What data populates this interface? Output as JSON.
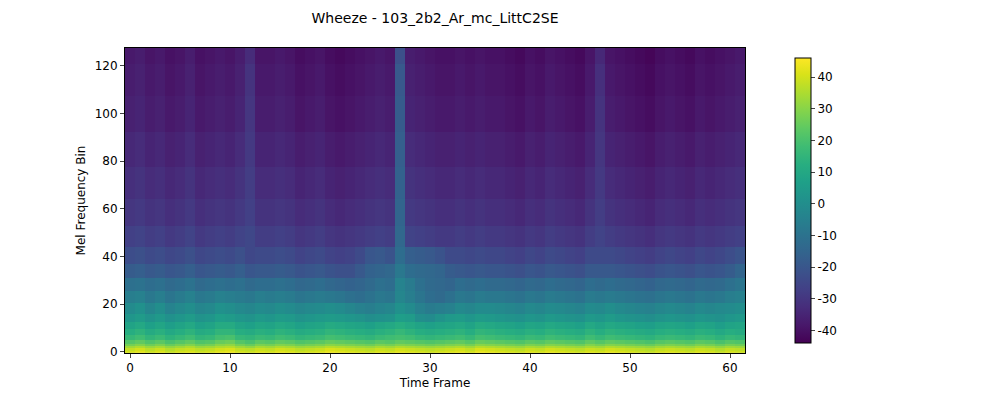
{
  "chart_data": {
    "type": "heatmap",
    "title": "Wheeze - 103_2b2_Ar_mc_LittC2SE",
    "x_label": "Time Frame",
    "y_label": "Mel Frequency Bin",
    "color": "Viridis",
    "xlim": [
      -0.5,
      61.5
    ],
    "ylim": [
      -0.5,
      127.5
    ],
    "xticks": [
      0,
      10,
      20,
      30,
      40,
      50,
      60
    ],
    "yticks": [
      0,
      20,
      40,
      60,
      80,
      100,
      120
    ],
    "colorbar": {
      "range": [
        -44,
        46
      ],
      "ticks": [
        -40,
        -30,
        -20,
        -10,
        0,
        10,
        20,
        30,
        40
      ]
    },
    "x": [
      0,
      1,
      2,
      3,
      4,
      5,
      6,
      7,
      8,
      9,
      10,
      11,
      12,
      13,
      14,
      15,
      16,
      17,
      18,
      19,
      20,
      21,
      22,
      23,
      24,
      25,
      26,
      27,
      28,
      29,
      30,
      31,
      32,
      33,
      34,
      35,
      36,
      37,
      38,
      39,
      40,
      41,
      42,
      43,
      44,
      45,
      46,
      47,
      48,
      49,
      50,
      51,
      52,
      53,
      54,
      55,
      56,
      57,
      58,
      59,
      60,
      61
    ],
    "y": [
      0,
      1,
      2,
      3,
      4,
      6,
      8,
      11,
      14,
      18,
      23,
      28,
      34,
      40,
      48,
      58,
      70,
      85,
      100,
      115,
      127
    ],
    "z": [
      [
        40,
        42,
        39,
        41,
        38,
        40,
        41,
        39,
        40,
        42,
        43,
        40,
        39,
        41,
        40,
        42,
        41,
        39,
        40,
        41,
        43,
        42,
        41,
        40,
        39,
        41,
        40,
        42,
        41,
        40,
        39,
        40,
        41,
        42,
        40,
        43,
        42,
        41,
        40,
        39,
        41,
        40,
        42,
        41,
        40,
        39,
        41,
        40,
        42,
        41,
        40,
        39,
        38,
        40,
        41,
        40,
        39,
        41,
        40,
        38,
        40,
        39
      ],
      [
        38,
        40,
        37,
        39,
        36,
        38,
        39,
        37,
        38,
        40,
        41,
        38,
        37,
        39,
        38,
        40,
        39,
        37,
        38,
        39,
        41,
        40,
        39,
        38,
        37,
        39,
        38,
        40,
        39,
        38,
        37,
        38,
        39,
        40,
        38,
        41,
        40,
        39,
        38,
        37,
        39,
        38,
        40,
        39,
        38,
        37,
        39,
        38,
        40,
        39,
        38,
        37,
        36,
        38,
        39,
        38,
        37,
        39,
        38,
        36,
        38,
        37
      ],
      [
        33,
        35,
        32,
        34,
        31,
        33,
        35,
        32,
        33,
        35,
        36,
        33,
        31,
        34,
        33,
        35,
        34,
        32,
        33,
        34,
        36,
        35,
        34,
        33,
        32,
        34,
        33,
        35,
        34,
        33,
        32,
        33,
        34,
        35,
        33,
        36,
        35,
        34,
        33,
        32,
        34,
        33,
        35,
        34,
        33,
        32,
        34,
        33,
        35,
        34,
        33,
        32,
        31,
        33,
        34,
        33,
        32,
        34,
        33,
        31,
        33,
        32
      ],
      [
        27,
        29,
        26,
        28,
        25,
        27,
        29,
        26,
        27,
        30,
        31,
        27,
        25,
        28,
        27,
        29,
        28,
        26,
        27,
        28,
        30,
        29,
        28,
        27,
        26,
        28,
        27,
        29,
        28,
        27,
        26,
        27,
        28,
        29,
        27,
        30,
        29,
        28,
        27,
        26,
        28,
        27,
        29,
        28,
        27,
        26,
        29,
        27,
        29,
        28,
        27,
        26,
        25,
        27,
        28,
        27,
        26,
        28,
        27,
        25,
        27,
        26
      ],
      [
        22,
        24,
        21,
        23,
        20,
        22,
        24,
        21,
        22,
        25,
        26,
        22,
        20,
        23,
        22,
        24,
        23,
        21,
        22,
        23,
        25,
        24,
        23,
        22,
        21,
        23,
        22,
        24,
        23,
        22,
        21,
        22,
        23,
        24,
        22,
        25,
        24,
        23,
        22,
        21,
        23,
        22,
        24,
        23,
        22,
        21,
        24,
        22,
        24,
        23,
        22,
        21,
        20,
        22,
        23,
        22,
        21,
        23,
        22,
        20,
        22,
        21
      ],
      [
        16,
        18,
        15,
        17,
        14,
        16,
        18,
        15,
        16,
        19,
        20,
        16,
        15,
        17,
        16,
        18,
        17,
        15,
        16,
        17,
        19,
        18,
        17,
        16,
        15,
        17,
        18,
        19,
        18,
        16,
        15,
        16,
        17,
        18,
        16,
        19,
        18,
        17,
        16,
        15,
        17,
        16,
        18,
        17,
        16,
        15,
        18,
        16,
        18,
        17,
        16,
        15,
        14,
        16,
        17,
        16,
        15,
        17,
        16,
        14,
        16,
        15
      ],
      [
        12,
        14,
        11,
        13,
        10,
        12,
        14,
        11,
        12,
        15,
        15,
        12,
        11,
        13,
        12,
        14,
        13,
        11,
        12,
        13,
        15,
        14,
        13,
        12,
        11,
        13,
        14,
        16,
        14,
        12,
        11,
        12,
        13,
        14,
        12,
        15,
        14,
        13,
        12,
        11,
        13,
        12,
        14,
        13,
        12,
        11,
        14,
        12,
        14,
        13,
        12,
        11,
        10,
        12,
        13,
        12,
        11,
        13,
        12,
        10,
        12,
        11
      ],
      [
        8,
        10,
        7,
        9,
        6,
        8,
        10,
        7,
        8,
        11,
        11,
        8,
        7,
        9,
        8,
        10,
        9,
        7,
        8,
        9,
        11,
        10,
        9,
        8,
        7,
        9,
        10,
        12,
        10,
        8,
        7,
        8,
        9,
        10,
        8,
        11,
        10,
        9,
        8,
        7,
        9,
        8,
        10,
        9,
        8,
        7,
        10,
        8,
        10,
        9,
        8,
        7,
        6,
        8,
        9,
        8,
        7,
        9,
        8,
        6,
        8,
        9
      ],
      [
        3,
        5,
        2,
        4,
        1,
        3,
        5,
        2,
        3,
        6,
        5,
        3,
        2,
        4,
        3,
        5,
        4,
        2,
        3,
        4,
        5,
        4,
        3,
        2,
        0,
        1,
        2,
        6,
        5,
        0,
        -1,
        2,
        4,
        5,
        3,
        5,
        4,
        3,
        2,
        1,
        3,
        2,
        4,
        3,
        2,
        1,
        4,
        3,
        5,
        3,
        2,
        1,
        0,
        2,
        3,
        2,
        1,
        3,
        2,
        1,
        3,
        4
      ],
      [
        -1,
        1,
        -3,
        0,
        -4,
        -2,
        0,
        -3,
        -2,
        1,
        0,
        -2,
        -3,
        -1,
        -2,
        0,
        -1,
        -3,
        -2,
        -1,
        0,
        -1,
        -3,
        -5,
        -6,
        -4,
        -3,
        1,
        -1,
        -5,
        -7,
        -6,
        -5,
        -2,
        -3,
        -1,
        -1,
        -2,
        -3,
        -4,
        -2,
        -3,
        -1,
        -2,
        -3,
        -4,
        -1,
        -2,
        0,
        -2,
        -3,
        -4,
        -5,
        -3,
        -2,
        -3,
        -4,
        -2,
        -3,
        -2,
        -1,
        0
      ],
      [
        -6,
        -5,
        -8,
        -6,
        -9,
        -7,
        -5,
        -8,
        -7,
        -5,
        -6,
        -7,
        -8,
        -6,
        -7,
        -6,
        -7,
        -9,
        -8,
        -7,
        -8,
        -9,
        -11,
        -12,
        -10,
        -8,
        -9,
        -3,
        -6,
        -9,
        -12,
        -13,
        -11,
        -8,
        -9,
        -7,
        -8,
        -8,
        -9,
        -10,
        -8,
        -9,
        -7,
        -8,
        -9,
        -10,
        -7,
        -8,
        -7,
        -8,
        -9,
        -10,
        -11,
        -9,
        -8,
        -9,
        -10,
        -8,
        -9,
        -8,
        -6,
        -5
      ],
      [
        -11,
        -10,
        -12,
        -11,
        -13,
        -12,
        -10,
        -13,
        -12,
        -11,
        -12,
        -11,
        -13,
        -12,
        -12,
        -11,
        -12,
        -14,
        -13,
        -12,
        -14,
        -15,
        -16,
        -15,
        -13,
        -11,
        -12,
        -4,
        -7,
        -11,
        -13,
        -14,
        -15,
        -12,
        -13,
        -12,
        -13,
        -13,
        -14,
        -15,
        -13,
        -14,
        -12,
        -13,
        -14,
        -15,
        -12,
        -13,
        -12,
        -13,
        -14,
        -15,
        -16,
        -14,
        -13,
        -14,
        -15,
        -13,
        -14,
        -13,
        -11,
        -9
      ],
      [
        -18,
        -17,
        -19,
        -18,
        -20,
        -19,
        -17,
        -20,
        -19,
        -18,
        -19,
        -17,
        -20,
        -19,
        -19,
        -18,
        -19,
        -21,
        -20,
        -19,
        -21,
        -22,
        -22,
        -19,
        -16,
        -15,
        -14,
        -8,
        -12,
        -13,
        -14,
        -15,
        -18,
        -19,
        -20,
        -19,
        -20,
        -20,
        -21,
        -22,
        -20,
        -21,
        -19,
        -20,
        -21,
        -22,
        -19,
        -19,
        -19,
        -20,
        -21,
        -22,
        -23,
        -21,
        -20,
        -21,
        -22,
        -20,
        -21,
        -20,
        -18,
        -15
      ],
      [
        -23,
        -22,
        -24,
        -23,
        -25,
        -24,
        -22,
        -25,
        -24,
        -23,
        -24,
        -22,
        -25,
        -24,
        -24,
        -23,
        -24,
        -26,
        -25,
        -24,
        -26,
        -27,
        -26,
        -24,
        -20,
        -19,
        -21,
        -12,
        -17,
        -18,
        -19,
        -21,
        -24,
        -24,
        -25,
        -24,
        -25,
        -25,
        -26,
        -27,
        -25,
        -26,
        -24,
        -25,
        -26,
        -27,
        -24,
        -24,
        -24,
        -25,
        -26,
        -27,
        -28,
        -26,
        -25,
        -26,
        -27,
        -25,
        -26,
        -25,
        -23,
        -21
      ],
      [
        -27,
        -26,
        -28,
        -27,
        -29,
        -28,
        -26,
        -29,
        -28,
        -27,
        -28,
        -26,
        -25,
        -28,
        -28,
        -27,
        -28,
        -30,
        -29,
        -28,
        -30,
        -31,
        -30,
        -29,
        -28,
        -27,
        -28,
        -14,
        -26,
        -27,
        -28,
        -29,
        -29,
        -28,
        -29,
        -28,
        -29,
        -29,
        -30,
        -31,
        -29,
        -30,
        -28,
        -29,
        -30,
        -31,
        -28,
        -26,
        -28,
        -29,
        -30,
        -31,
        -32,
        -30,
        -29,
        -30,
        -31,
        -29,
        -30,
        -29,
        -28,
        -27
      ],
      [
        -30,
        -29,
        -31,
        -30,
        -32,
        -31,
        -29,
        -32,
        -31,
        -30,
        -31,
        -29,
        -27,
        -31,
        -31,
        -30,
        -31,
        -33,
        -32,
        -31,
        -33,
        -34,
        -33,
        -32,
        -31,
        -30,
        -31,
        -15,
        -29,
        -30,
        -31,
        -32,
        -32,
        -31,
        -32,
        -31,
        -32,
        -32,
        -33,
        -34,
        -32,
        -33,
        -31,
        -32,
        -33,
        -34,
        -31,
        -28,
        -31,
        -32,
        -33,
        -34,
        -35,
        -33,
        -32,
        -33,
        -34,
        -32,
        -33,
        -32,
        -31,
        -30
      ],
      [
        -32,
        -31,
        -33,
        -32,
        -34,
        -33,
        -31,
        -34,
        -33,
        -32,
        -33,
        -31,
        -28,
        -33,
        -33,
        -32,
        -33,
        -35,
        -34,
        -33,
        -35,
        -36,
        -35,
        -34,
        -33,
        -32,
        -33,
        -16,
        -31,
        -32,
        -33,
        -34,
        -34,
        -33,
        -34,
        -33,
        -34,
        -34,
        -35,
        -36,
        -34,
        -35,
        -33,
        -34,
        -35,
        -36,
        -33,
        -29,
        -33,
        -34,
        -35,
        -36,
        -37,
        -35,
        -34,
        -35,
        -36,
        -34,
        -35,
        -34,
        -33,
        -32
      ],
      [
        -34,
        -33,
        -35,
        -34,
        -36,
        -35,
        -33,
        -36,
        -35,
        -34,
        -35,
        -33,
        -29,
        -35,
        -35,
        -34,
        -35,
        -37,
        -36,
        -35,
        -37,
        -38,
        -37,
        -36,
        -35,
        -34,
        -35,
        -17,
        -33,
        -34,
        -35,
        -36,
        -36,
        -35,
        -36,
        -35,
        -36,
        -36,
        -37,
        -38,
        -36,
        -37,
        -35,
        -36,
        -37,
        -38,
        -35,
        -30,
        -35,
        -36,
        -37,
        -38,
        -39,
        -37,
        -36,
        -37,
        -38,
        -36,
        -37,
        -36,
        -35,
        -34
      ],
      [
        -36,
        -35,
        -37,
        -36,
        -38,
        -37,
        -35,
        -38,
        -37,
        -36,
        -37,
        -35,
        -30,
        -37,
        -37,
        -36,
        -37,
        -39,
        -38,
        -37,
        -39,
        -40,
        -39,
        -38,
        -37,
        -36,
        -37,
        -18,
        -35,
        -36,
        -37,
        -38,
        -38,
        -37,
        -38,
        -37,
        -38,
        -38,
        -39,
        -40,
        -38,
        -39,
        -37,
        -38,
        -39,
        -40,
        -37,
        -31,
        -37,
        -38,
        -39,
        -40,
        -41,
        -39,
        -38,
        -39,
        -40,
        -38,
        -39,
        -38,
        -37,
        -36
      ],
      [
        -37,
        -36,
        -38,
        -37,
        -39,
        -38,
        -36,
        -39,
        -38,
        -37,
        -38,
        -36,
        -31,
        -38,
        -38,
        -37,
        -38,
        -40,
        -39,
        -38,
        -40,
        -41,
        -40,
        -39,
        -38,
        -37,
        -38,
        -19,
        -36,
        -37,
        -38,
        -39,
        -39,
        -38,
        -39,
        -38,
        -39,
        -39,
        -40,
        -41,
        -39,
        -40,
        -38,
        -39,
        -40,
        -41,
        -38,
        -32,
        -38,
        -39,
        -40,
        -41,
        -42,
        -40,
        -39,
        -40,
        -41,
        -39,
        -40,
        -39,
        -38,
        -37
      ],
      [
        -38,
        -37,
        -39,
        -38,
        -40,
        -39,
        -37,
        -40,
        -39,
        -38,
        -39,
        -37,
        -33,
        -39,
        -39,
        -38,
        -39,
        -41,
        -40,
        -39,
        -41,
        -42,
        -41,
        -40,
        -39,
        -38,
        -39,
        -22,
        -37,
        -38,
        -39,
        -40,
        -40,
        -39,
        -40,
        -39,
        -40,
        -40,
        -41,
        -42,
        -40,
        -41,
        -39,
        -40,
        -41,
        -42,
        -39,
        -34,
        -39,
        -40,
        -41,
        -42,
        -43,
        -41,
        -40,
        -41,
        -42,
        -40,
        -41,
        -40,
        -39,
        -38
      ]
    ]
  }
}
